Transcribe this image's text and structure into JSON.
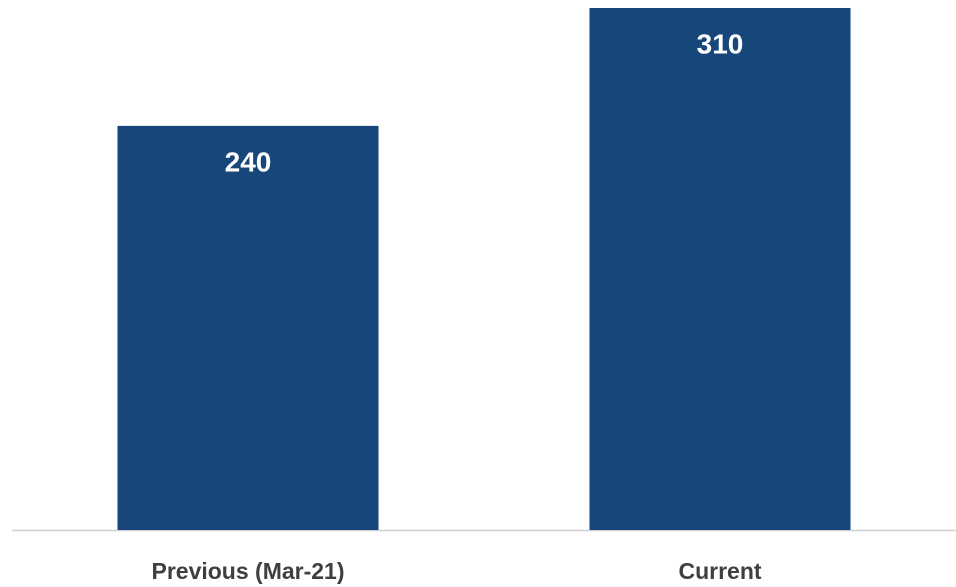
{
  "chart_data": {
    "type": "bar",
    "categories": [
      "Previous (Mar-21)",
      "Current"
    ],
    "values": [
      240,
      310
    ],
    "color": "#17477a",
    "ylim": [
      0,
      310
    ]
  }
}
